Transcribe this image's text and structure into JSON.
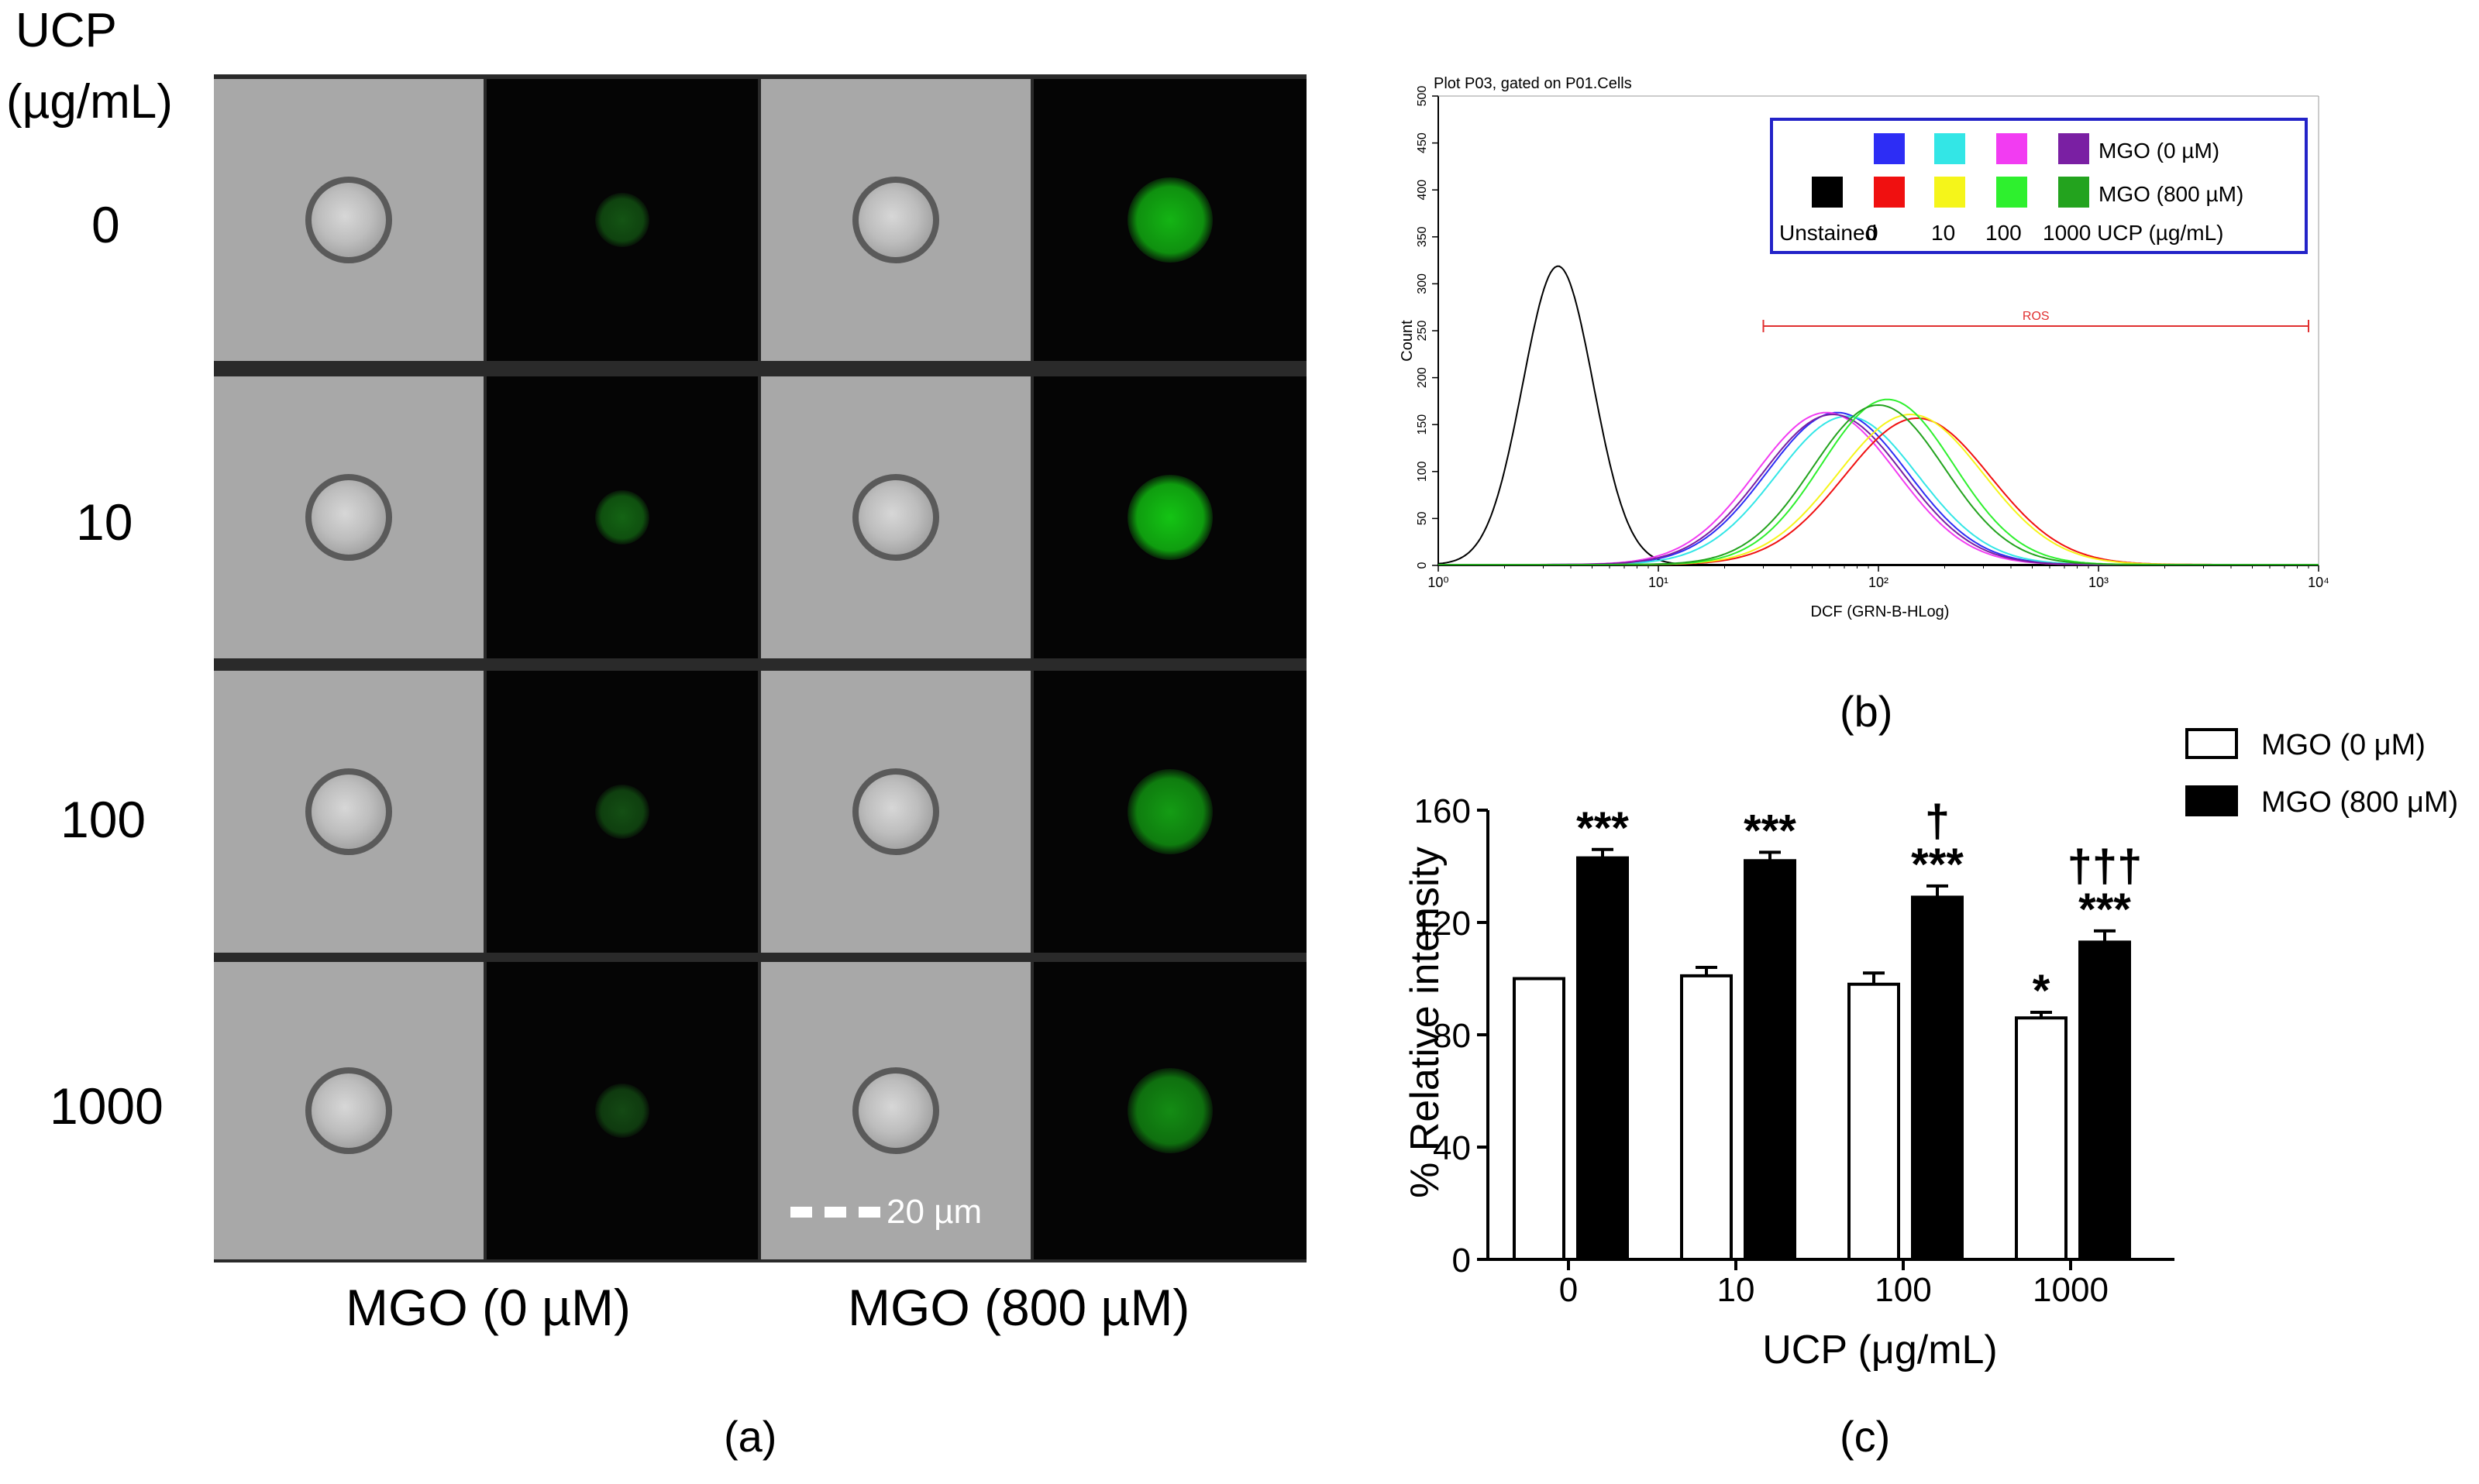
{
  "panel_a": {
    "row_header": [
      "UCP",
      "(µg/mL)"
    ],
    "rows": [
      "0",
      "10",
      "100",
      "1000"
    ],
    "columns": [
      "MGO (0 µM)",
      "MGO (800 µM)"
    ],
    "scale_bar": "20 µm",
    "green_intensity": [
      [
        0.15,
        0.75
      ],
      [
        0.25,
        0.85
      ],
      [
        0.12,
        0.6
      ],
      [
        0.08,
        0.5
      ]
    ],
    "label": "(a)"
  },
  "panel_b": {
    "title": "Plot P03, gated on P01.Cells",
    "ylabel": "Count",
    "xlabel": "DCF (GRN-B-HLog)",
    "yticks": [
      "0",
      "50",
      "100",
      "150",
      "200",
      "250",
      "300",
      "350",
      "400",
      "450",
      "500"
    ],
    "xticks": [
      "10⁰",
      "10¹",
      "10²",
      "10³",
      "10⁴"
    ],
    "gate_label": "ROS",
    "gate_range": [
      30,
      9000
    ],
    "legend": {
      "row1": "MGO (0 µM)",
      "row2": "MGO (800 µM)",
      "bottom": [
        "Unstained",
        "0",
        "10",
        "100",
        "1000 UCP (µg/mL)"
      ],
      "swatches_top": [
        "#2d2df5",
        "#33e6e6",
        "#f23cf2",
        "#7a1fa3"
      ],
      "swatches_bottom": [
        "#000000",
        "#f01010",
        "#f5f51a",
        "#2ef02e",
        "#23a31e"
      ]
    },
    "curves": [
      {
        "color": "#000000",
        "peak_x": 3.5,
        "peak_y": 318,
        "log_sd": 0.16
      },
      {
        "color": "#2d2df5",
        "peak_x": 65,
        "peak_y": 162,
        "log_sd": 0.32
      },
      {
        "color": "#33e6e6",
        "peak_x": 72,
        "peak_y": 158,
        "log_sd": 0.32
      },
      {
        "color": "#f23cf2",
        "peak_x": 58,
        "peak_y": 162,
        "log_sd": 0.32
      },
      {
        "color": "#7a1fa3",
        "peak_x": 62,
        "peak_y": 160,
        "log_sd": 0.32
      },
      {
        "color": "#f01010",
        "peak_x": 150,
        "peak_y": 156,
        "log_sd": 0.33
      },
      {
        "color": "#f5f51a",
        "peak_x": 140,
        "peak_y": 160,
        "log_sd": 0.33
      },
      {
        "color": "#2ef02e",
        "peak_x": 110,
        "peak_y": 176,
        "log_sd": 0.3
      },
      {
        "color": "#23a31e",
        "peak_x": 100,
        "peak_y": 170,
        "log_sd": 0.3
      }
    ],
    "label": "(b)"
  },
  "chart_data": {
    "type": "bar",
    "categories": [
      "0",
      "10",
      "100",
      "1000"
    ],
    "series": [
      {
        "name": "MGO (0 μM)",
        "values": [
          100,
          101,
          98,
          86
        ],
        "errors": [
          0,
          3,
          4,
          2
        ],
        "color": "#ffffff",
        "annotations": [
          "",
          "",
          "",
          "*"
        ]
      },
      {
        "name": "MGO (800 μM)",
        "values": [
          143,
          142,
          129,
          113
        ],
        "errors": [
          3,
          3,
          4,
          4
        ],
        "color": "#000000",
        "annotations": [
          "***",
          "***",
          "†\n***",
          "†††\n***"
        ]
      }
    ],
    "xlabel": "UCP (μg/mL)",
    "ylabel": "% Relative intensity",
    "ylim": [
      0,
      160
    ],
    "yticks": [
      "0",
      "40",
      "80",
      "120",
      "160"
    ],
    "legend_position": "top-right",
    "label": "(c)"
  }
}
